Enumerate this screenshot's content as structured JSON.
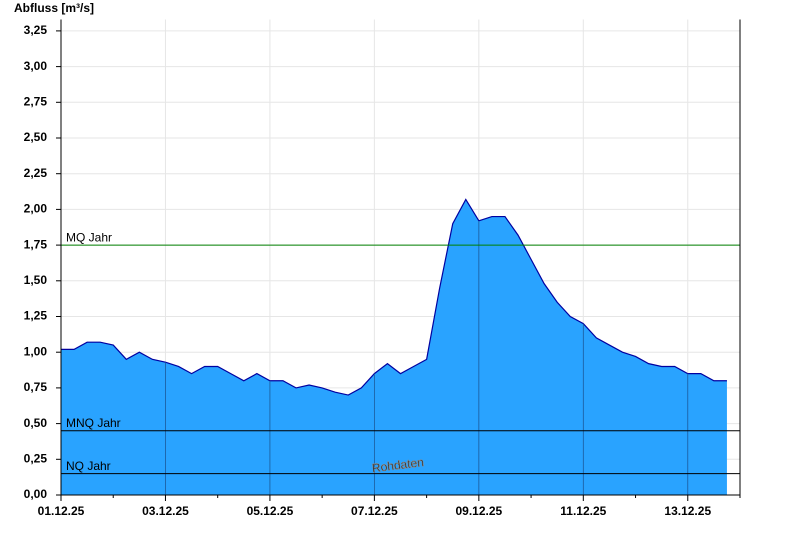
{
  "chart_data": {
    "type": "area",
    "title": "Abfluss [m³/s]",
    "annotation": "Rohdaten",
    "color": "#29a3ff",
    "line_color": "#0000a0",
    "grid": true,
    "categories": [
      "01.12.25",
      null,
      null,
      null,
      null,
      null,
      null,
      null,
      "03.12.25",
      null,
      null,
      null,
      null,
      null,
      null,
      null,
      "05.12.25",
      null,
      null,
      null,
      null,
      null,
      null,
      null,
      "07.12.25",
      null,
      null,
      null,
      null,
      null,
      null,
      null,
      "09.12.25",
      null,
      null,
      null,
      null,
      null,
      null,
      null,
      "11.12.25",
      null,
      null,
      null,
      null,
      null,
      null,
      null,
      "13.12.25",
      null,
      null,
      null
    ],
    "values": [
      1.02,
      1.02,
      1.07,
      1.07,
      1.05,
      0.95,
      1.0,
      0.95,
      0.93,
      0.9,
      0.85,
      0.9,
      0.9,
      0.85,
      0.8,
      0.85,
      0.8,
      0.8,
      0.75,
      0.77,
      0.75,
      0.72,
      0.7,
      0.75,
      0.85,
      0.92,
      0.85,
      0.9,
      0.95,
      1.45,
      1.9,
      2.07,
      1.92,
      1.95,
      1.95,
      1.82,
      1.65,
      1.48,
      1.35,
      1.25,
      1.2,
      1.1,
      1.05,
      1.0,
      0.97,
      0.92,
      0.9,
      0.9,
      0.85,
      0.85,
      0.8,
      0.8
    ],
    "ylim": [
      0,
      3.33
    ],
    "yticks": [
      {
        "value": 0,
        "label": "0,00"
      },
      {
        "value": 0.25,
        "label": "0,25"
      },
      {
        "value": 0.5,
        "label": "0,50"
      },
      {
        "value": 0.75,
        "label": "0,75"
      },
      {
        "value": 1,
        "label": "1,00"
      },
      {
        "value": 1.25,
        "label": "1,25"
      },
      {
        "value": 1.5,
        "label": "1,50"
      },
      {
        "value": 1.75,
        "label": "1,75"
      },
      {
        "value": 2,
        "label": "2,00"
      },
      {
        "value": 2.25,
        "label": "2,25"
      },
      {
        "value": 2.5,
        "label": "2,50"
      },
      {
        "value": 2.75,
        "label": "2,75"
      },
      {
        "value": 3,
        "label": "3,00"
      },
      {
        "value": 3.25,
        "label": "3,25"
      }
    ],
    "reference_lines": [
      {
        "label": "MQ Jahr",
        "value": 1.75,
        "color": "#008000"
      },
      {
        "label": "MNQ Jahr",
        "value": 0.45,
        "color": "#000000"
      },
      {
        "label": "NQ Jahr",
        "value": 0.15,
        "color": "#000000"
      }
    ]
  }
}
